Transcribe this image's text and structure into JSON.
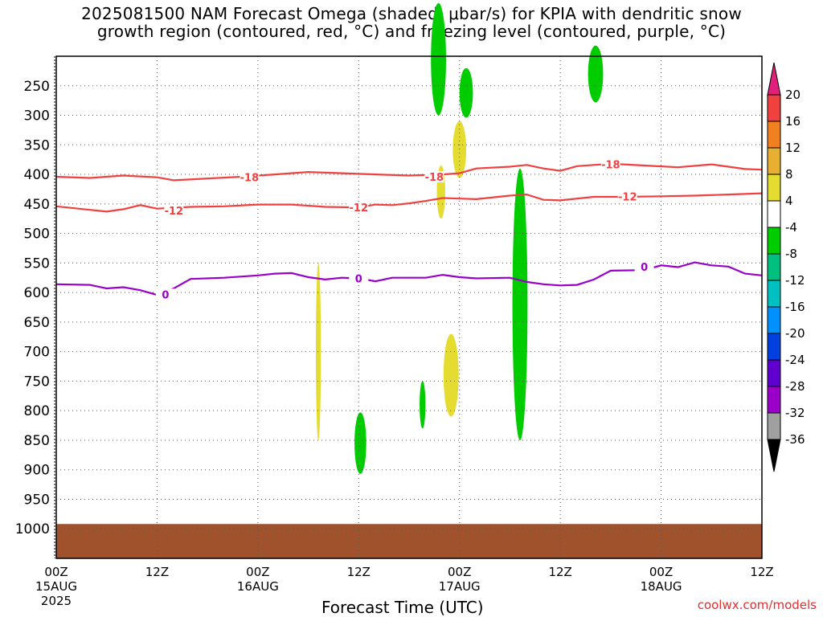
{
  "title": {
    "line1": "2025081500 NAM Forecast Omega (shaded, μbar/s) for KPIA with dendritic snow",
    "line2": "growth region (contoured, red, °C) and freezing level (contoured, purple, °C)"
  },
  "credit": "coolwx.com/models",
  "colors": {
    "dgz_contour": "#f04040",
    "freezing_contour": "#9a00c8",
    "ground": "#a0522d",
    "omega_green": "#00cc00",
    "omega_yellow": "#e4dc30"
  },
  "chart_data": {
    "type": "time-height cross section",
    "x_axis_title": "Forecast Time (UTC)",
    "x_ticks": [
      {
        "hour": 0,
        "label": "00Z",
        "sub": "15AUG",
        "sub2": "2025"
      },
      {
        "hour": 12,
        "label": "12Z"
      },
      {
        "hour": 24,
        "label": "00Z",
        "sub": "16AUG"
      },
      {
        "hour": 36,
        "label": "12Z"
      },
      {
        "hour": 48,
        "label": "00Z",
        "sub": "17AUG"
      },
      {
        "hour": 60,
        "label": "12Z"
      },
      {
        "hour": 72,
        "label": "00Z",
        "sub": "18AUG"
      },
      {
        "hour": 84,
        "label": "12Z"
      }
    ],
    "x_range_hours": [
      0,
      84
    ],
    "y_axis": "pressure (mb)",
    "y_ticks": [
      250,
      300,
      350,
      400,
      450,
      500,
      550,
      600,
      650,
      700,
      750,
      800,
      850,
      900,
      950,
      1000
    ],
    "y_range_mb": [
      200,
      1050
    ],
    "grid": true,
    "colorbar": {
      "labels": [
        20,
        16,
        12,
        8,
        4,
        -4,
        -8,
        -12,
        -16,
        -20,
        -24,
        -28,
        -32,
        -36
      ],
      "colors": [
        "#e0207a",
        "#f04040",
        "#f08020",
        "#e8b030",
        "#e4dc30",
        "#ffffff",
        "#00cc00",
        "#00c080",
        "#00c0c0",
        "#0090ff",
        "#0040e0",
        "#6000d0",
        "#9a00c8",
        "#a0a0a0",
        "#000000"
      ]
    },
    "contours": [
      {
        "value": "-18",
        "color": "dgz",
        "points": [
          [
            0,
            404
          ],
          [
            4,
            406
          ],
          [
            8,
            402
          ],
          [
            12,
            405
          ],
          [
            14,
            410
          ],
          [
            18,
            407
          ],
          [
            22,
            404
          ],
          [
            26,
            400
          ],
          [
            30,
            396
          ],
          [
            34,
            398
          ],
          [
            38,
            400
          ],
          [
            42,
            402
          ],
          [
            46,
            400
          ],
          [
            48,
            398
          ],
          [
            50,
            390
          ],
          [
            54,
            387
          ],
          [
            56,
            384
          ],
          [
            58,
            390
          ],
          [
            60,
            394
          ],
          [
            62,
            386
          ],
          [
            66,
            382
          ],
          [
            70,
            385
          ],
          [
            74,
            388
          ],
          [
            78,
            383
          ],
          [
            82,
            391
          ],
          [
            84,
            392
          ]
        ],
        "labels": [
          [
            23,
            405
          ],
          [
            45,
            404
          ],
          [
            66,
            383
          ]
        ]
      },
      {
        "value": "-12",
        "color": "dgz",
        "points": [
          [
            0,
            454
          ],
          [
            4,
            460
          ],
          [
            6,
            463
          ],
          [
            8,
            459
          ],
          [
            10,
            452
          ],
          [
            12,
            458
          ],
          [
            16,
            455
          ],
          [
            20,
            454
          ],
          [
            24,
            451
          ],
          [
            28,
            451
          ],
          [
            32,
            455
          ],
          [
            36,
            456
          ],
          [
            38,
            451
          ],
          [
            40,
            452
          ],
          [
            42,
            449
          ],
          [
            44,
            445
          ],
          [
            46,
            440
          ],
          [
            48,
            441
          ],
          [
            50,
            442
          ],
          [
            54,
            436
          ],
          [
            56,
            434
          ],
          [
            58,
            443
          ],
          [
            60,
            444
          ],
          [
            64,
            438
          ],
          [
            68,
            438
          ],
          [
            72,
            437
          ],
          [
            76,
            436
          ],
          [
            80,
            434
          ],
          [
            84,
            432
          ]
        ],
        "labels": [
          [
            14,
            461
          ],
          [
            36,
            456
          ],
          [
            68,
            437
          ]
        ]
      },
      {
        "value": "0",
        "color": "freezing",
        "points": [
          [
            0,
            586
          ],
          [
            4,
            587
          ],
          [
            6,
            593
          ],
          [
            8,
            591
          ],
          [
            10,
            596
          ],
          [
            12,
            604
          ],
          [
            14,
            593
          ],
          [
            16,
            577
          ],
          [
            20,
            575
          ],
          [
            24,
            571
          ],
          [
            26,
            568
          ],
          [
            28,
            567
          ],
          [
            30,
            574
          ],
          [
            32,
            578
          ],
          [
            34,
            575
          ],
          [
            36,
            576
          ],
          [
            38,
            581
          ],
          [
            40,
            575
          ],
          [
            44,
            575
          ],
          [
            46,
            570
          ],
          [
            48,
            574
          ],
          [
            50,
            576
          ],
          [
            54,
            575
          ],
          [
            56,
            582
          ],
          [
            58,
            586
          ],
          [
            60,
            588
          ],
          [
            62,
            587
          ],
          [
            64,
            578
          ],
          [
            66,
            563
          ],
          [
            70,
            562
          ],
          [
            72,
            554
          ],
          [
            74,
            557
          ],
          [
            76,
            549
          ],
          [
            78,
            554
          ],
          [
            80,
            556
          ],
          [
            82,
            568
          ],
          [
            84,
            571
          ]
        ],
        "labels": [
          [
            13,
            603
          ],
          [
            36,
            576
          ],
          [
            70,
            556
          ]
        ]
      }
    ],
    "omega_regions": [
      {
        "value_range": [
          -8,
          -4
        ],
        "color": "green",
        "center": [
          45.5,
          205
        ],
        "half_width_h": 0.9,
        "half_depth_mb": 95
      },
      {
        "value_range": [
          -8,
          -4
        ],
        "color": "green",
        "center": [
          48.8,
          262
        ],
        "half_width_h": 0.8,
        "half_depth_mb": 42
      },
      {
        "value_range": [
          -8,
          -4
        ],
        "color": "green",
        "center": [
          64.2,
          230
        ],
        "half_width_h": 0.9,
        "half_depth_mb": 48
      },
      {
        "value_range": [
          -8,
          -4
        ],
        "color": "green",
        "center": [
          55.2,
          620
        ],
        "half_width_h": 0.9,
        "half_depth_mb": 230
      },
      {
        "value_range": [
          -8,
          -4
        ],
        "color": "green",
        "center": [
          36.2,
          855
        ],
        "half_width_h": 0.7,
        "half_depth_mb": 52
      },
      {
        "value_range": [
          -8,
          -4
        ],
        "color": "green",
        "center": [
          43.6,
          790
        ],
        "half_width_h": 0.35,
        "half_depth_mb": 40
      },
      {
        "value_range": [
          4,
          8
        ],
        "color": "yellow",
        "center": [
          48.0,
          358
        ],
        "half_width_h": 0.8,
        "half_depth_mb": 48
      },
      {
        "value_range": [
          4,
          8
        ],
        "color": "yellow",
        "center": [
          45.8,
          430
        ],
        "half_width_h": 0.5,
        "half_depth_mb": 45
      },
      {
        "value_range": [
          4,
          8
        ],
        "color": "yellow",
        "center": [
          47.0,
          740
        ],
        "half_width_h": 0.9,
        "half_depth_mb": 70
      },
      {
        "value_range": [
          4,
          8
        ],
        "color": "yellow",
        "center": [
          31.2,
          700
        ],
        "half_width_h": 0.3,
        "half_depth_mb": 150
      }
    ],
    "ground_mb": [
      1000,
      1050
    ]
  }
}
